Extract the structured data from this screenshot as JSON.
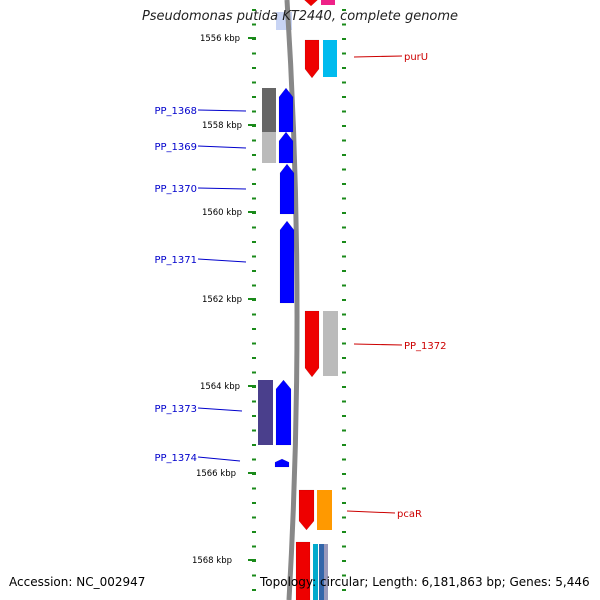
{
  "title": "Pseudomonas putida KT2440, complete genome",
  "accession": "Accession: NC_002947",
  "summary": "Topology: circular; Length: 6,181,863 bp; Genes: 5,446",
  "colors": {
    "backbone": "#888888",
    "tick": "#1a8a1a",
    "left_label": "#0000cc",
    "right_label": "#cc0000",
    "highlight": "#c8d4f4"
  },
  "scale_labels": [
    "1556 kbp",
    "1558 kbp",
    "1560 kbp",
    "1562 kbp",
    "1564 kbp",
    "1566 kbp",
    "1568 kbp"
  ],
  "left_genes": [
    {
      "name": "PP_1368",
      "strand": "+",
      "color": "#0000ff",
      "hit": "#666666"
    },
    {
      "name": "PP_1369",
      "strand": "+",
      "color": "#0000ff",
      "hit": "#bbbbbb"
    },
    {
      "name": "PP_1370",
      "strand": "+",
      "color": "#0000ff"
    },
    {
      "name": "PP_1371",
      "strand": "+",
      "color": "#0000ff"
    },
    {
      "name": "PP_1373",
      "strand": "+",
      "color": "#0000ff",
      "hit": "#4a3f8c"
    },
    {
      "name": "PP_1374",
      "strand": "+",
      "color": "#0000ff"
    }
  ],
  "right_genes": [
    {
      "name": "purU",
      "strand": "-",
      "color": "#ee0000",
      "hit": "#00bbee"
    },
    {
      "name": "PP_1372",
      "strand": "-",
      "color": "#ee0000",
      "hit": "#bbbbbb"
    },
    {
      "name": "pcaR",
      "strand": "-",
      "color": "#ee0000",
      "hit": "#ff9900"
    }
  ]
}
